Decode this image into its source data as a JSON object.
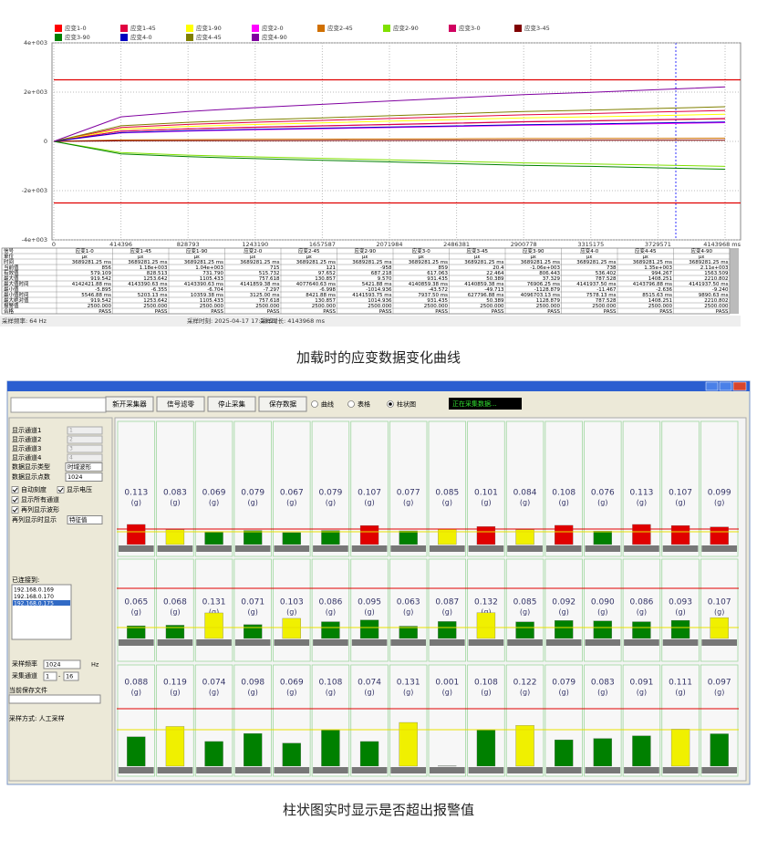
{
  "chart_data": {
    "type": "line",
    "x": [
      0,
      414396,
      828793,
      1243190,
      1657587,
      2071984,
      2486381,
      2900778,
      3315175,
      3729571,
      4143968
    ],
    "xlim": [
      0,
      4143968
    ],
    "xticks": [
      0,
      414396,
      828793,
      1243190,
      1657587,
      2071984,
      2486381,
      2900778,
      3315175,
      3729571,
      {
        "value": 4143968,
        "label": "4143968 ms"
      }
    ],
    "ylim": [
      -4000,
      4000
    ],
    "yticks": [
      {
        "value": 4000,
        "label": "4e+003"
      },
      {
        "value": 2000,
        "label": "2e+003"
      },
      0,
      {
        "value": -2000,
        "label": "-2e+003"
      },
      {
        "value": -4000,
        "label": "-4e+003"
      }
    ],
    "grid": true,
    "reference_lines": [
      {
        "value": 2500,
        "color": "#e00000"
      },
      {
        "value": -2500,
        "color": "#e00000"
      }
    ],
    "series": [
      {
        "name": "应变1-0",
        "color": "#ff0000",
        "values": [
          0,
          414,
          506,
          570,
          626,
          681,
          736,
          791,
          828,
          874,
          920
        ]
      },
      {
        "name": "应变1-45",
        "color": "#e00040",
        "values": [
          0,
          564,
          690,
          777,
          853,
          928,
          1003,
          1078,
          1129,
          1191,
          1254
        ]
      },
      {
        "name": "应变1-90",
        "color": "#ffff00",
        "values": [
          0,
          497,
          608,
          685,
          751,
          818,
          884,
          950,
          995,
          1050,
          1105
        ]
      },
      {
        "name": "应变2-0",
        "color": "#ff00ff",
        "values": [
          0,
          341,
          417,
          470,
          515,
          561,
          606,
          652,
          682,
          720,
          758
        ]
      },
      {
        "name": "应变2-45",
        "color": "#d07000",
        "values": [
          0,
          59,
          72,
          81,
          89,
          97,
          105,
          113,
          118,
          124,
          131
        ]
      },
      {
        "name": "应变2-90",
        "color": "#80e000",
        "values": [
          0,
          -457,
          -558,
          -629,
          -690,
          -751,
          -812,
          -873,
          -914,
          -964,
          -1015
        ]
      },
      {
        "name": "应变3-0",
        "color": "#d00060",
        "values": [
          0,
          419,
          512,
          577,
          633,
          689,
          745,
          801,
          838,
          884,
          931
        ]
      },
      {
        "name": "应变3-45",
        "color": "#800000",
        "values": [
          0,
          23,
          28,
          31,
          34,
          37,
          40,
          43,
          45,
          48,
          50
        ]
      },
      {
        "name": "应变3-90",
        "color": "#008000",
        "values": [
          0,
          -508,
          -621,
          -700,
          -768,
          -835,
          -903,
          -971,
          -1016,
          -1073,
          -1129
        ]
      },
      {
        "name": "应变4-0",
        "color": "#0000c0",
        "values": [
          0,
          355,
          433,
          489,
          536,
          583,
          630,
          678,
          709,
          749,
          788
        ]
      },
      {
        "name": "应变4-45",
        "color": "#808000",
        "values": [
          0,
          634,
          774,
          873,
          957,
          1042,
          1126,
          1211,
          1267,
          1338,
          1408
        ]
      },
      {
        "name": "应变4-90",
        "color": "#8000a0",
        "values": [
          0,
          995,
          1216,
          1371,
          1503,
          1636,
          1769,
          1901,
          1990,
          2100,
          2211
        ]
      }
    ]
  },
  "stats_table": {
    "header": [
      "信号",
      "应变1-0",
      "应变1-45",
      "应变1-90",
      "应变2-0",
      "应变2-45",
      "应变2-90",
      "应变3-0",
      "应变3-45",
      "应变3-90",
      "应变4-0",
      "应变4-45",
      "应变4-90"
    ],
    "rows": [
      [
        "单位",
        "με",
        "με",
        "με",
        "με",
        "με",
        "με",
        "με",
        "με",
        "με",
        "με",
        "με",
        "με"
      ],
      [
        "时间",
        "3689281.25 ms",
        "3689281.25 ms",
        "3689281.25 ms",
        "3689281.25 ms",
        "3689281.25 ms",
        "3689281.25 ms",
        "3689281.25 ms",
        "3689281.25 ms",
        "3689281.25 ms",
        "3689281.25 ms",
        "3689281.25 ms",
        "3689281.25 ms"
      ],
      [
        "当前值",
        "856",
        "1.18e+003",
        "1.04e+003",
        "715",
        "121",
        "-958",
        "859",
        "20.4",
        "-1.06e+003",
        "738",
        "1.35e+003",
        "2.11e+003"
      ],
      [
        "有效值",
        "579.109",
        "828.513",
        "731.790",
        "515.732",
        "97.652",
        "687.218",
        "617.063",
        "22.464",
        "806.443",
        "536.402",
        "994.267",
        "1563.509"
      ],
      [
        "最大值",
        "919.542",
        "1253.642",
        "1105.433",
        "757.618",
        "130.857",
        "9.570",
        "931.435",
        "50.389",
        "37.329",
        "787.528",
        "1408.251",
        "2210.802"
      ],
      [
        "最大值时间",
        "4142421.88 ms",
        "4143390.63 ms",
        "4143390.63 ms",
        "4141859.38 ms",
        "4077640.63 ms",
        "5421.88 ms",
        "4140859.38 ms",
        "4140859.38 ms",
        "76906.25 ms",
        "4141937.50 ms",
        "4143796.88 ms",
        "4141937.50 ms"
      ],
      [
        "最小值",
        "-5.895",
        "-6.355",
        "-6.704",
        "-7.297",
        "-6.998",
        "-1014.936",
        "-43.572",
        "-49.713",
        "-1128.879",
        "-11.467",
        "-2.636",
        "-9.240"
      ],
      [
        "最小值时间",
        "5546.88 ms",
        "5203.13 ms",
        "10359.38 ms",
        "3125.00 ms",
        "8421.88 ms",
        "4141593.75 ms",
        "7937.50 ms",
        "627796.88 ms",
        "4096703.13 ms",
        "7578.13 ms",
        "8515.63 ms",
        "9890.63 ms"
      ],
      [
        "最大绝对值",
        "919.542",
        "1253.642",
        "1105.433",
        "757.618",
        "130.857",
        "1014.936",
        "931.435",
        "50.389",
        "1128.879",
        "787.528",
        "1408.251",
        "2210.802"
      ],
      [
        "报警值",
        "2500.000",
        "2500.000",
        "2500.000",
        "2500.000",
        "2500.000",
        "2500.000",
        "2500.000",
        "2500.000",
        "2500.000",
        "2500.000",
        "2500.000",
        "2500.000"
      ],
      [
        "合格",
        "PASS",
        "PASS",
        "PASS",
        "PASS",
        "PASS",
        "PASS",
        "PASS",
        "PASS",
        "PASS",
        "PASS",
        "PASS",
        "PASS"
      ]
    ]
  },
  "status_bar": [
    "采样频率:  64 Hz",
    "采样时刻:  2025-04-17  17:28:22",
    "采样时长:  4143968 ms"
  ],
  "caption_1": "加载时的应变数据变化曲线",
  "app": {
    "toolbar": [
      "新开采集器",
      "信号滤零",
      "停止采集",
      "保存数据"
    ],
    "views": [
      "曲线",
      "表格",
      "柱状图"
    ],
    "status": "正在采集数据...",
    "left": {
      "channels": [
        [
          "显示通道1",
          "1"
        ],
        [
          "显示通道2",
          "2"
        ],
        [
          "显示通道3",
          "3"
        ],
        [
          "显示通道4",
          "4"
        ]
      ],
      "display_type": [
        "数据显示类型",
        "时域波形"
      ],
      "display_points": [
        "数据显示点数",
        "1024"
      ],
      "checks": [
        "自动刻度",
        "显示电压",
        "显示所有通道",
        "再列显示波形"
      ],
      "column_display": [
        "再列显示时显示",
        "特征值"
      ],
      "connected_label": "已连接到:",
      "connected": [
        "192.168.0.169",
        "192.168.0.170",
        "192.168.0.175"
      ],
      "sample_rate": [
        "采样频率",
        "1024",
        "Hz"
      ],
      "sample_channels": [
        "采集通道",
        "1",
        "-",
        "16"
      ],
      "save_file": "当前保存文件",
      "sample_mode": "采样方式: 人工采样"
    },
    "unit": "(g)",
    "rows": [
      {
        "values": [
          0.113,
          0.083,
          0.069,
          0.079,
          0.067,
          0.079,
          0.107,
          0.077,
          0.085,
          0.101,
          0.084,
          0.108,
          0.076,
          0.113,
          0.107,
          0.099
        ],
        "value_labels": [
          "0.113",
          "0.083",
          "0.069",
          "0.079",
          "0.067",
          "0.079",
          "0.107",
          "0.077",
          "0.085",
          "0.101",
          "0.084",
          "0.108",
          "0.076",
          "0.113",
          "0.107",
          "0.099"
        ],
        "colors": [
          "#e00000",
          "#f0f000",
          "#008000",
          "#008000",
          "#008000",
          "#008000",
          "#e00000",
          "#008000",
          "#f0f000",
          "#e00000",
          "#f0f000",
          "#e00000",
          "#008000",
          "#e00000",
          "#e00000",
          "#e00000"
        ]
      },
      {
        "values": [
          0.065,
          0.068,
          0.131,
          0.071,
          0.103,
          0.086,
          0.095,
          0.063,
          0.087,
          0.132,
          0.085,
          0.092,
          0.09,
          0.086,
          0.093,
          0.107
        ],
        "value_labels": [
          "0.065",
          "0.068",
          "0.131",
          "0.071",
          "0.103",
          "0.086",
          "0.095",
          "0.063",
          "0.087",
          "0.132",
          "0.085",
          "0.092",
          "0.090",
          "0.086",
          "0.093",
          "0.107"
        ],
        "colors": [
          "#008000",
          "#008000",
          "#f0f000",
          "#008000",
          "#f0f000",
          "#008000",
          "#008000",
          "#008000",
          "#008000",
          "#f0f000",
          "#008000",
          "#008000",
          "#008000",
          "#008000",
          "#008000",
          "#f0f000"
        ]
      },
      {
        "values": [
          0.088,
          0.119,
          0.074,
          0.098,
          0.069,
          0.108,
          0.074,
          0.131,
          0.001,
          0.108,
          0.122,
          0.079,
          0.083,
          0.091,
          0.111,
          0.097
        ],
        "value_labels": [
          "0.088",
          "0.119",
          "0.074",
          "0.098",
          "0.069",
          "0.108",
          "0.074",
          "0.131",
          "0.001",
          "0.108",
          "0.122",
          "0.079",
          "0.083",
          "0.091",
          "0.111",
          "0.097"
        ],
        "colors": [
          "#008000",
          "#f0f000",
          "#008000",
          "#008000",
          "#008000",
          "#008000",
          "#008000",
          "#f0f000",
          "#008000",
          "#008000",
          "#f0f000",
          "#008000",
          "#008000",
          "#008000",
          "#f0f000",
          "#008000"
        ]
      }
    ]
  },
  "caption_2": "柱状图实时显示是否超出报警值"
}
